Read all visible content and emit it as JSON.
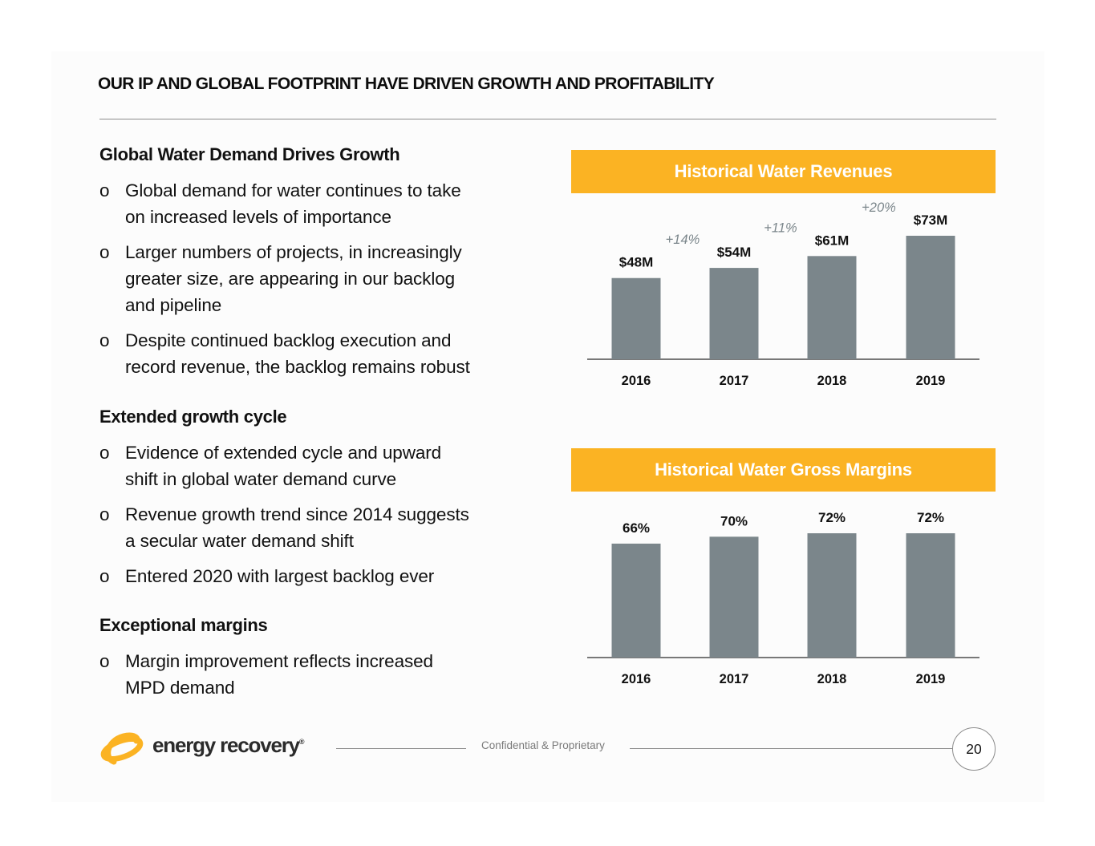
{
  "slide": {
    "title": "OUR IP AND GLOBAL FOOTPRINT HAVE DRIVEN GROWTH AND PROFITABILITY",
    "bullet_glyph": "o",
    "sections": [
      {
        "heading": "Global Water Demand Drives Growth",
        "bullets": [
          {
            "lines": [
              "Global demand for water continues to take",
              "on increased levels of importance"
            ]
          },
          {
            "lines": [
              "Larger numbers of projects, in increasingly",
              "greater size,  are appearing in our backlog",
              "and pipeline"
            ]
          },
          {
            "lines": [
              "Despite continued backlog execution and",
              "record revenue, the backlog remains robust"
            ]
          }
        ]
      },
      {
        "heading": "Extended growth cycle",
        "bullets": [
          {
            "lines": [
              "Evidence of extended cycle and upward",
              "shift in global water demand curve"
            ]
          },
          {
            "lines": [
              "Revenue growth trend since 2014 suggests",
              "a secular water demand shift"
            ]
          },
          {
            "lines": [
              "Entered 2020 with largest backlog ever"
            ]
          }
        ]
      },
      {
        "heading": "Exceptional margins",
        "bullets": [
          {
            "lines": [
              "Margin improvement reflects increased",
              "MPD demand"
            ]
          }
        ]
      }
    ]
  },
  "colors": {
    "accent": "#fbb323",
    "bar": "#7b868b",
    "growth_label": "#7b868b"
  },
  "chart_data": [
    {
      "type": "bar",
      "title": "Historical Water Revenues",
      "categories": [
        "2016",
        "2017",
        "2018",
        "2019"
      ],
      "values": [
        48,
        54,
        61,
        73
      ],
      "value_labels": [
        "$48M",
        "$54M",
        "$61M",
        "$73M"
      ],
      "growth_labels": [
        "+14%",
        "+11%",
        "+20%"
      ],
      "unit": "$M",
      "xlabel": "",
      "ylabel": "",
      "ylim": [
        0,
        73
      ],
      "grid": false,
      "legend": "none"
    },
    {
      "type": "bar",
      "title": "Historical Water Gross Margins",
      "categories": [
        "2016",
        "2017",
        "2018",
        "2019"
      ],
      "values": [
        66,
        70,
        72,
        72
      ],
      "value_labels": [
        "66%",
        "70%",
        "72%",
        "72%"
      ],
      "unit": "%",
      "xlabel": "",
      "ylabel": "",
      "ylim": [
        0,
        72
      ],
      "grid": false,
      "legend": "none"
    }
  ],
  "footer": {
    "logo_text": "energy recovery",
    "logo_reg": "®",
    "confidential": "Confidential & Proprietary",
    "page_number": "20"
  }
}
